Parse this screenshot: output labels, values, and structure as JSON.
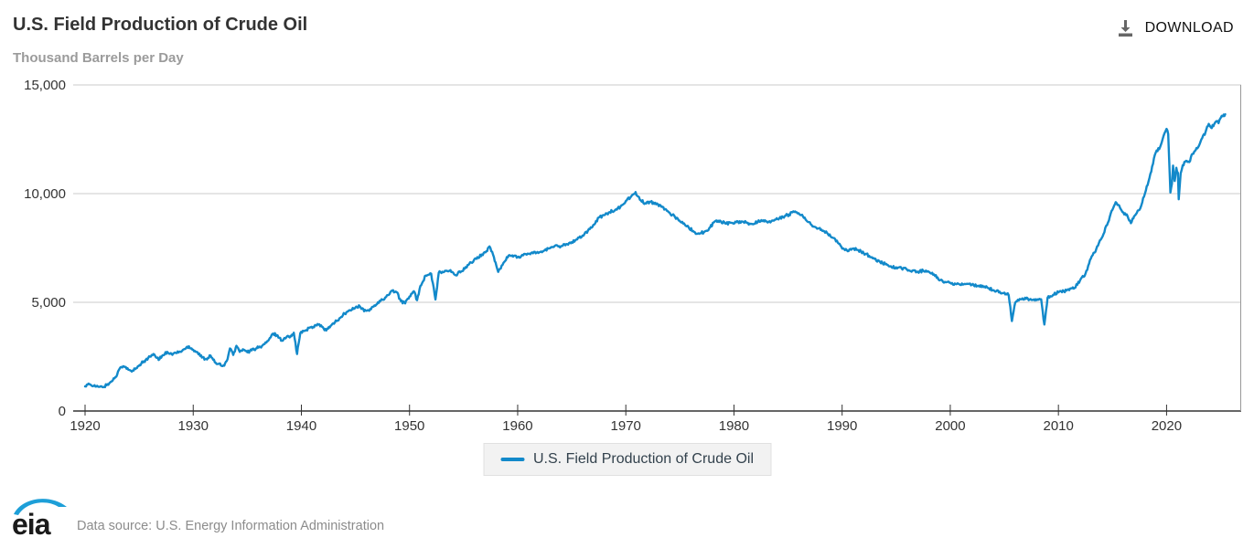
{
  "header": {
    "title": "U.S. Field Production of Crude Oil",
    "subtitle": "Thousand Barrels per Day",
    "download_label": "DOWNLOAD"
  },
  "legend": {
    "label": "U.S. Field Production of Crude Oil"
  },
  "footer": {
    "logo_text": "eia",
    "source_text": "Data source: U.S. Energy Information Administration"
  },
  "colors": {
    "accent": "#1289ca",
    "grid": "#cbcbcb",
    "axis": "#333333",
    "right_border": "#999999",
    "tick_text": "#333333",
    "icon_gray": "#666666",
    "logo_blue": "#1d9fd8"
  },
  "chart_data": {
    "type": "line",
    "title": "U.S. Field Production of Crude Oil",
    "ylabel": "Thousand Barrels per Day",
    "series_name": "U.S. Field Production of Crude Oil",
    "legend_position": "bottom",
    "grid": "horizontal",
    "xlim": [
      1918.9,
      2026.9
    ],
    "ylim": [
      0,
      15000
    ],
    "xticks": [
      1920,
      1930,
      1940,
      1950,
      1960,
      1970,
      1980,
      1990,
      2000,
      2010,
      2020
    ],
    "yticks": [
      0,
      5000,
      10000,
      15000
    ],
    "noise_amplitude": 65,
    "points": [
      [
        1920.0,
        1130
      ],
      [
        1920.4,
        1230
      ],
      [
        1920.8,
        1160
      ],
      [
        1921.2,
        1120
      ],
      [
        1921.6,
        1100
      ],
      [
        1922.0,
        1190
      ],
      [
        1922.4,
        1350
      ],
      [
        1922.8,
        1560
      ],
      [
        1923.2,
        1950
      ],
      [
        1923.6,
        2050
      ],
      [
        1924.0,
        1900
      ],
      [
        1924.4,
        1860
      ],
      [
        1924.8,
        1980
      ],
      [
        1925.2,
        2180
      ],
      [
        1925.6,
        2350
      ],
      [
        1926.0,
        2500
      ],
      [
        1926.4,
        2600
      ],
      [
        1926.8,
        2350
      ],
      [
        1927.2,
        2570
      ],
      [
        1927.6,
        2720
      ],
      [
        1928.0,
        2620
      ],
      [
        1928.4,
        2670
      ],
      [
        1928.8,
        2730
      ],
      [
        1929.2,
        2850
      ],
      [
        1929.6,
        2980
      ],
      [
        1930.0,
        2820
      ],
      [
        1930.4,
        2700
      ],
      [
        1930.8,
        2460
      ],
      [
        1931.2,
        2400
      ],
      [
        1931.6,
        2550
      ],
      [
        1932.0,
        2240
      ],
      [
        1932.4,
        2180
      ],
      [
        1932.8,
        2100
      ],
      [
        1933.1,
        2300
      ],
      [
        1933.4,
        2880
      ],
      [
        1933.7,
        2580
      ],
      [
        1934.0,
        3000
      ],
      [
        1934.3,
        2720
      ],
      [
        1934.6,
        2840
      ],
      [
        1935.0,
        2700
      ],
      [
        1935.4,
        2790
      ],
      [
        1935.8,
        2880
      ],
      [
        1936.2,
        2950
      ],
      [
        1936.6,
        3080
      ],
      [
        1937.0,
        3280
      ],
      [
        1937.4,
        3560
      ],
      [
        1937.8,
        3480
      ],
      [
        1938.2,
        3230
      ],
      [
        1938.6,
        3380
      ],
      [
        1939.0,
        3460
      ],
      [
        1939.3,
        3600
      ],
      [
        1939.6,
        2620
      ],
      [
        1939.9,
        3580
      ],
      [
        1940.3,
        3680
      ],
      [
        1940.7,
        3820
      ],
      [
        1941.1,
        3870
      ],
      [
        1941.5,
        4000
      ],
      [
        1941.9,
        3880
      ],
      [
        1942.3,
        3700
      ],
      [
        1942.7,
        3910
      ],
      [
        1943.1,
        4070
      ],
      [
        1943.6,
        4290
      ],
      [
        1944.0,
        4480
      ],
      [
        1944.5,
        4640
      ],
      [
        1945.0,
        4760
      ],
      [
        1945.4,
        4820
      ],
      [
        1945.8,
        4590
      ],
      [
        1946.2,
        4630
      ],
      [
        1946.6,
        4800
      ],
      [
        1947.0,
        4920
      ],
      [
        1947.5,
        5120
      ],
      [
        1948.0,
        5330
      ],
      [
        1948.4,
        5540
      ],
      [
        1948.8,
        5470
      ],
      [
        1949.2,
        5060
      ],
      [
        1949.6,
        4950
      ],
      [
        1950.0,
        5270
      ],
      [
        1950.4,
        5510
      ],
      [
        1950.7,
        5100
      ],
      [
        1951.0,
        5750
      ],
      [
        1951.5,
        6230
      ],
      [
        1952.0,
        6320
      ],
      [
        1952.4,
        5130
      ],
      [
        1952.7,
        6360
      ],
      [
        1953.2,
        6400
      ],
      [
        1953.7,
        6460
      ],
      [
        1954.2,
        6260
      ],
      [
        1954.7,
        6380
      ],
      [
        1955.2,
        6620
      ],
      [
        1955.7,
        6830
      ],
      [
        1956.2,
        7000
      ],
      [
        1956.7,
        7200
      ],
      [
        1957.1,
        7350
      ],
      [
        1957.4,
        7570
      ],
      [
        1957.8,
        7080
      ],
      [
        1958.2,
        6400
      ],
      [
        1958.6,
        6720
      ],
      [
        1959.0,
        7080
      ],
      [
        1959.5,
        7160
      ],
      [
        1960.0,
        7080
      ],
      [
        1960.5,
        7160
      ],
      [
        1961.0,
        7230
      ],
      [
        1961.5,
        7320
      ],
      [
        1962.0,
        7300
      ],
      [
        1962.5,
        7390
      ],
      [
        1963.0,
        7490
      ],
      [
        1963.5,
        7620
      ],
      [
        1964.0,
        7580
      ],
      [
        1964.5,
        7680
      ],
      [
        1965.0,
        7770
      ],
      [
        1965.5,
        7890
      ],
      [
        1966.0,
        8070
      ],
      [
        1966.5,
        8300
      ],
      [
        1967.0,
        8560
      ],
      [
        1967.5,
        8900
      ],
      [
        1968.0,
        9010
      ],
      [
        1968.5,
        9150
      ],
      [
        1969.0,
        9240
      ],
      [
        1969.5,
        9400
      ],
      [
        1970.0,
        9660
      ],
      [
        1970.5,
        9870
      ],
      [
        1970.9,
        10070
      ],
      [
        1971.3,
        9720
      ],
      [
        1971.8,
        9560
      ],
      [
        1972.3,
        9620
      ],
      [
        1972.8,
        9510
      ],
      [
        1973.3,
        9390
      ],
      [
        1973.8,
        9210
      ],
      [
        1974.3,
        9020
      ],
      [
        1974.8,
        8850
      ],
      [
        1975.3,
        8620
      ],
      [
        1975.8,
        8460
      ],
      [
        1976.3,
        8240
      ],
      [
        1976.8,
        8150
      ],
      [
        1977.3,
        8260
      ],
      [
        1977.8,
        8450
      ],
      [
        1978.2,
        8710
      ],
      [
        1978.7,
        8760
      ],
      [
        1979.2,
        8620
      ],
      [
        1979.7,
        8660
      ],
      [
        1980.2,
        8680
      ],
      [
        1980.7,
        8720
      ],
      [
        1981.2,
        8650
      ],
      [
        1981.7,
        8600
      ],
      [
        1982.2,
        8710
      ],
      [
        1982.7,
        8770
      ],
      [
        1983.2,
        8700
      ],
      [
        1983.7,
        8760
      ],
      [
        1984.2,
        8870
      ],
      [
        1984.7,
        8970
      ],
      [
        1985.1,
        9040
      ],
      [
        1985.4,
        9140
      ],
      [
        1985.9,
        9090
      ],
      [
        1986.3,
        9030
      ],
      [
        1986.7,
        8760
      ],
      [
        1987.1,
        8590
      ],
      [
        1987.6,
        8440
      ],
      [
        1988.1,
        8340
      ],
      [
        1988.6,
        8200
      ],
      [
        1989.1,
        7980
      ],
      [
        1989.6,
        7740
      ],
      [
        1990.1,
        7480
      ],
      [
        1990.6,
        7360
      ],
      [
        1991.0,
        7470
      ],
      [
        1991.5,
        7400
      ],
      [
        1992.0,
        7260
      ],
      [
        1992.5,
        7140
      ],
      [
        1993.0,
        7000
      ],
      [
        1993.5,
        6860
      ],
      [
        1994.0,
        6750
      ],
      [
        1994.5,
        6660
      ],
      [
        1995.0,
        6610
      ],
      [
        1995.5,
        6560
      ],
      [
        1996.0,
        6510
      ],
      [
        1996.5,
        6460
      ],
      [
        1997.0,
        6410
      ],
      [
        1997.5,
        6460
      ],
      [
        1998.0,
        6410
      ],
      [
        1998.5,
        6280
      ],
      [
        1999.0,
        6010
      ],
      [
        1999.5,
        5940
      ],
      [
        2000.0,
        5900
      ],
      [
        2000.5,
        5840
      ],
      [
        2001.0,
        5800
      ],
      [
        2001.5,
        5850
      ],
      [
        2002.0,
        5810
      ],
      [
        2002.5,
        5760
      ],
      [
        2003.0,
        5760
      ],
      [
        2003.5,
        5650
      ],
      [
        2004.0,
        5560
      ],
      [
        2004.5,
        5460
      ],
      [
        2005.0,
        5440
      ],
      [
        2005.4,
        5330
      ],
      [
        2005.7,
        4140
      ],
      [
        2006.0,
        4980
      ],
      [
        2006.5,
        5140
      ],
      [
        2007.0,
        5160
      ],
      [
        2007.5,
        5110
      ],
      [
        2008.0,
        5100
      ],
      [
        2008.4,
        5140
      ],
      [
        2008.7,
        3980
      ],
      [
        2009.0,
        5210
      ],
      [
        2009.5,
        5340
      ],
      [
        2010.0,
        5460
      ],
      [
        2010.5,
        5510
      ],
      [
        2011.0,
        5560
      ],
      [
        2011.5,
        5660
      ],
      [
        2012.0,
        6010
      ],
      [
        2012.5,
        6310
      ],
      [
        2013.0,
        7010
      ],
      [
        2013.5,
        7460
      ],
      [
        2014.0,
        7960
      ],
      [
        2014.5,
        8560
      ],
      [
        2015.0,
        9260
      ],
      [
        2015.3,
        9610
      ],
      [
        2015.7,
        9340
      ],
      [
        2016.0,
        9140
      ],
      [
        2016.4,
        8960
      ],
      [
        2016.7,
        8640
      ],
      [
        2017.0,
        8960
      ],
      [
        2017.5,
        9260
      ],
      [
        2018.0,
        10010
      ],
      [
        2018.5,
        10910
      ],
      [
        2019.0,
        11890
      ],
      [
        2019.4,
        12140
      ],
      [
        2019.8,
        12760
      ],
      [
        2020.0,
        12980
      ],
      [
        2020.15,
        12740
      ],
      [
        2020.35,
        10050
      ],
      [
        2020.5,
        10460
      ],
      [
        2020.6,
        11290
      ],
      [
        2020.75,
        10580
      ],
      [
        2020.9,
        11190
      ],
      [
        2021.05,
        10960
      ],
      [
        2021.12,
        9740
      ],
      [
        2021.3,
        10920
      ],
      [
        2021.5,
        11310
      ],
      [
        2021.8,
        11510
      ],
      [
        2022.1,
        11450
      ],
      [
        2022.4,
        11830
      ],
      [
        2022.7,
        12010
      ],
      [
        2023.0,
        12210
      ],
      [
        2023.3,
        12560
      ],
      [
        2023.6,
        12830
      ],
      [
        2023.9,
        13210
      ],
      [
        2024.1,
        13040
      ],
      [
        2024.4,
        13190
      ],
      [
        2024.6,
        13330
      ],
      [
        2024.8,
        13240
      ],
      [
        2025.0,
        13480
      ],
      [
        2025.2,
        13560
      ],
      [
        2025.42,
        13650
      ]
    ]
  }
}
